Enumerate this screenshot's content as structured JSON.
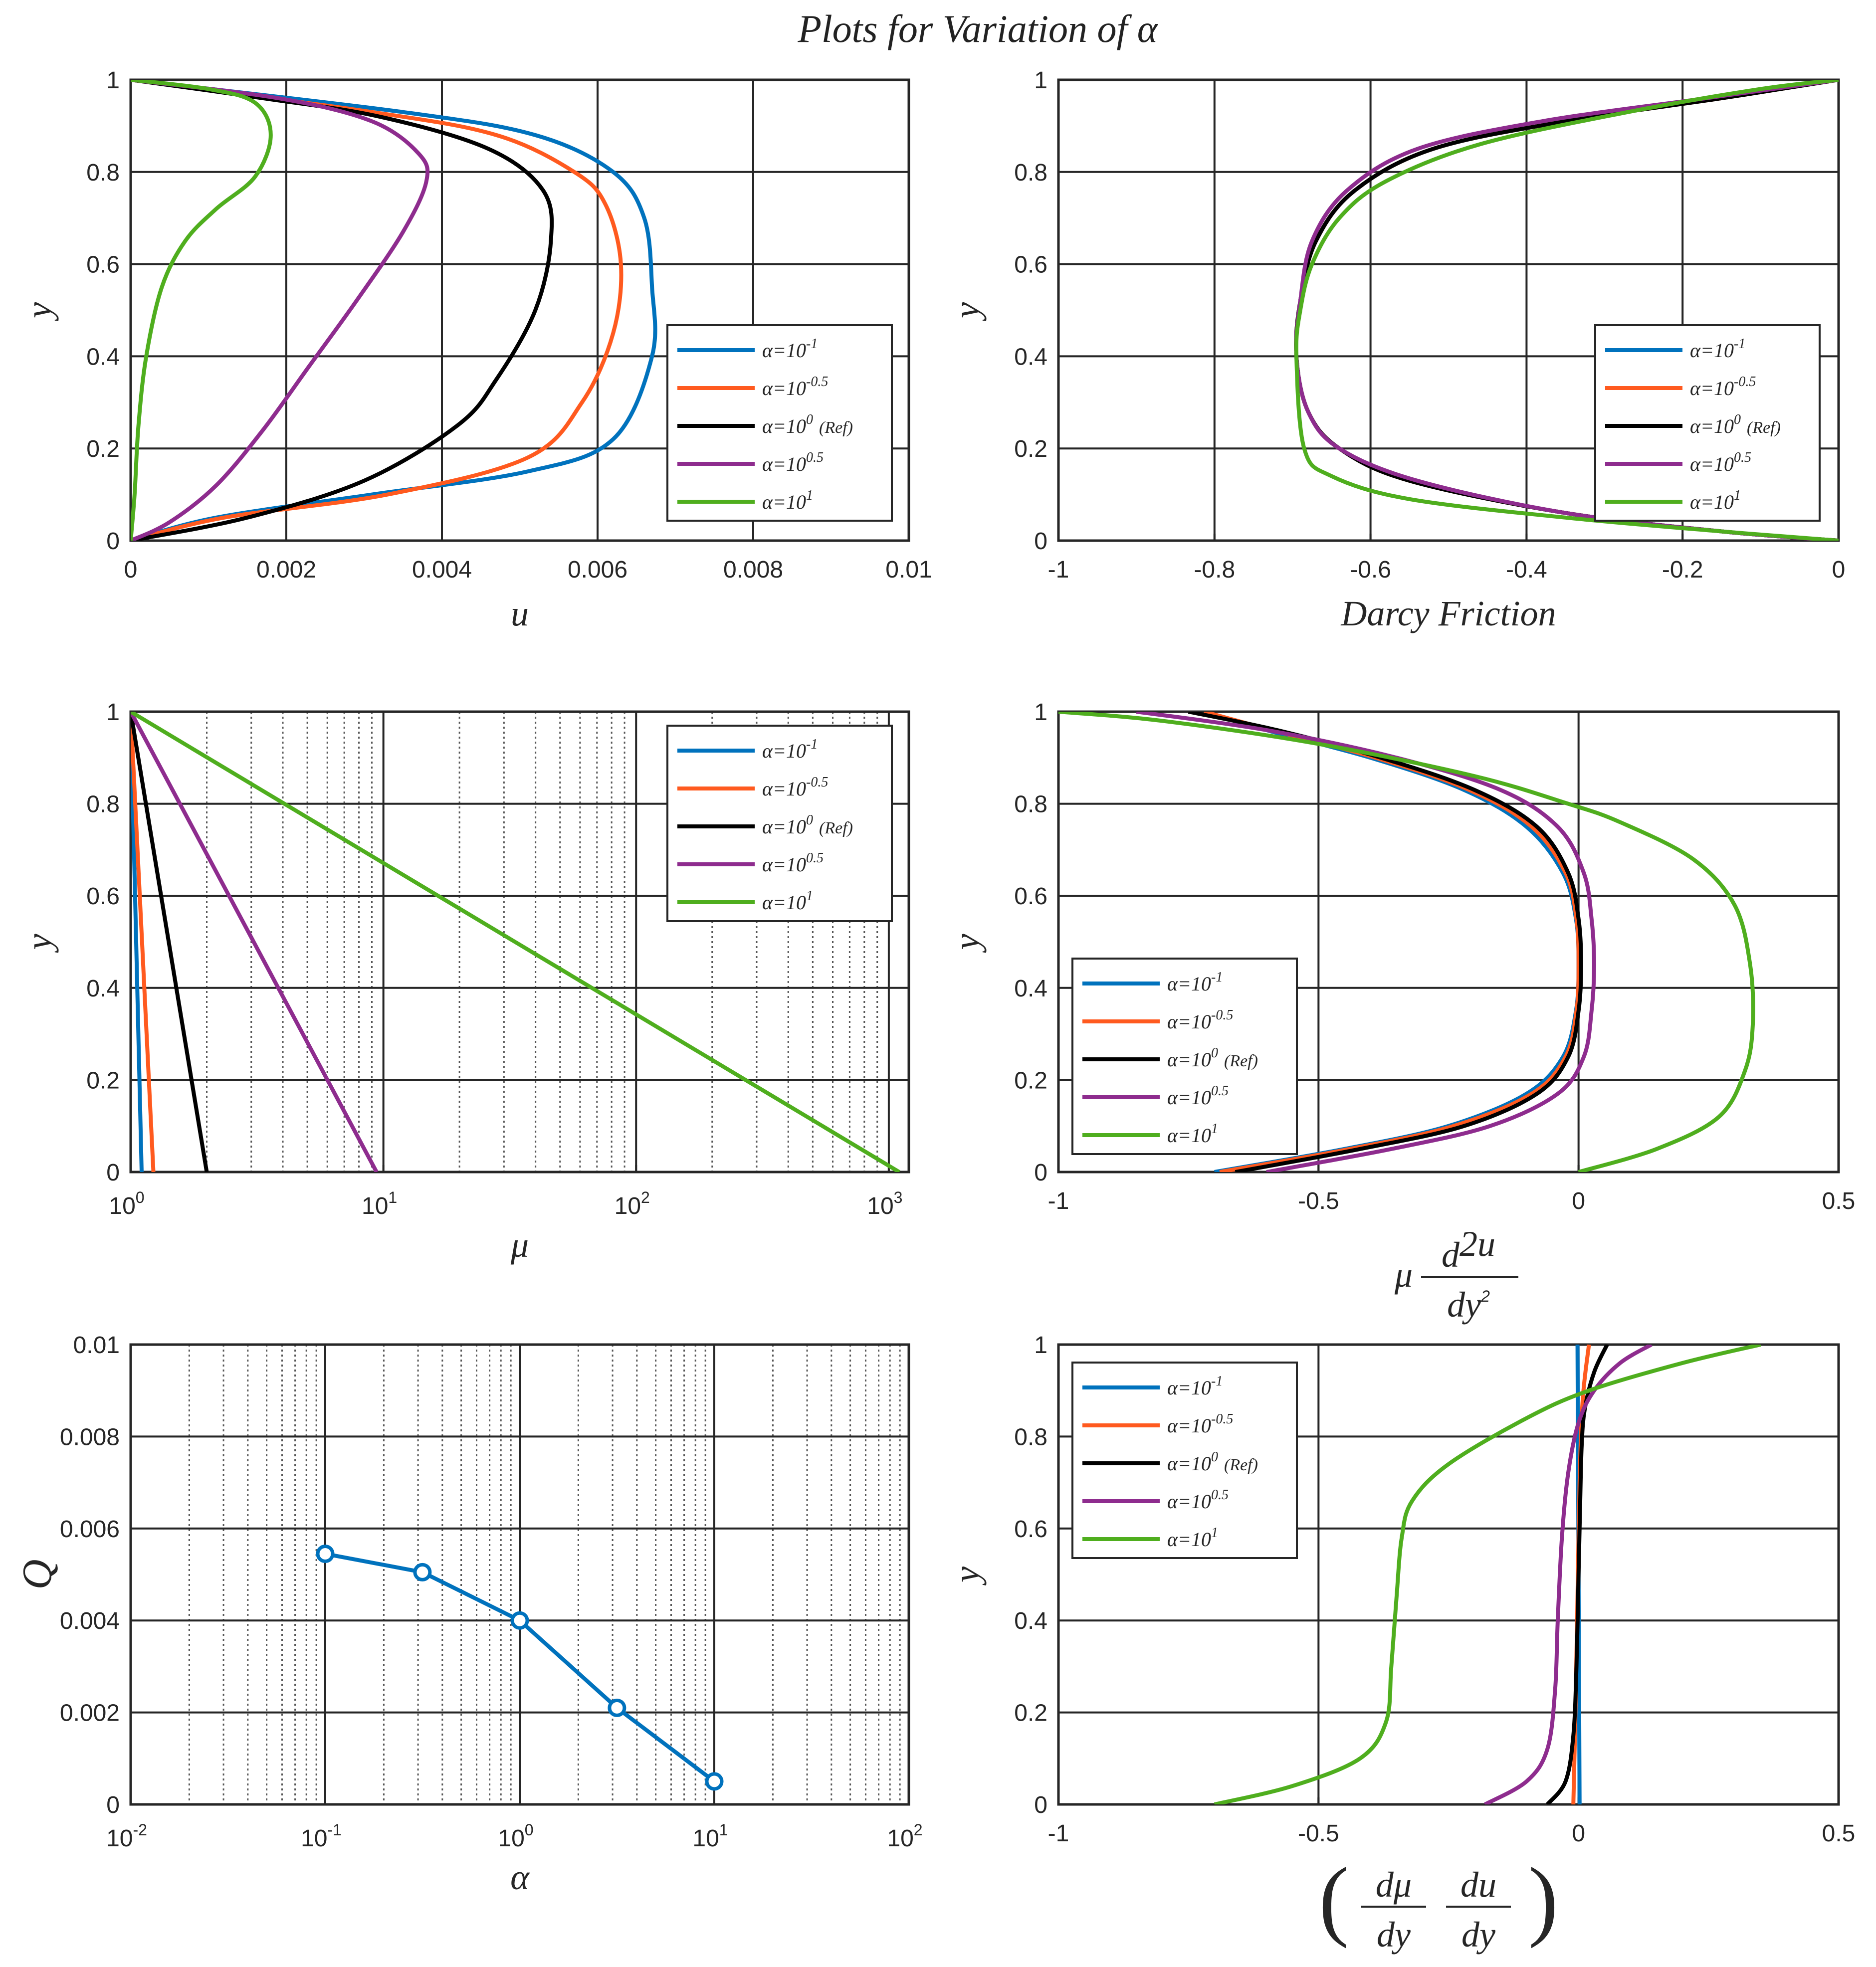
{
  "figure": {
    "title": "Plots for Variation of α"
  },
  "colors": {
    "alpha_1e-1": "#0072BD",
    "alpha_1e-0.5": "#ff5a1f",
    "alpha_1e0": "#000000",
    "alpha_1e0.5": "#8E2C8E",
    "alpha_1e1": "#4fae1e",
    "grid": "#262626",
    "minor_grid": "#555555"
  },
  "legend": {
    "entries": [
      {
        "base": "α=10",
        "exp": "-1",
        "suffix": ""
      },
      {
        "base": "α=10",
        "exp": "-0.5",
        "suffix": ""
      },
      {
        "base": "α=10",
        "exp": "0",
        "suffix": "(Ref)"
      },
      {
        "base": "α=10",
        "exp": "0.5",
        "suffix": ""
      },
      {
        "base": "α=10",
        "exp": "1",
        "suffix": ""
      }
    ]
  },
  "chart_data": [
    {
      "id": "u",
      "type": "line",
      "xlabel": "u",
      "ylabel": "y",
      "xlim": [
        0,
        0.01
      ],
      "ylim": [
        0,
        1
      ],
      "xticks": [
        "0",
        "0.002",
        "0.004",
        "0.006",
        "0.008",
        "0.01"
      ],
      "yticks": [
        "0",
        "0.2",
        "0.4",
        "0.6",
        "0.8",
        "1"
      ],
      "grid": true,
      "legend_position": "lower-right",
      "series": [
        {
          "name": "α=10^-1",
          "color": "#0072BD",
          "x": [
            0,
            0.0011,
            0.0031,
            0.0051,
            0.0062,
            0.0067,
            0.0067,
            0.0066,
            0.0062,
            0.0052,
            0.0035,
            0
          ],
          "y": [
            0,
            0.05,
            0.1,
            0.15,
            0.22,
            0.4,
            0.55,
            0.7,
            0.8,
            0.88,
            0.93,
            1
          ]
        },
        {
          "name": "α=10^-0.5",
          "color": "#ff5a1f",
          "x": [
            0,
            0.0012,
            0.0033,
            0.0051,
            0.0058,
            0.0062,
            0.0063,
            0.0061,
            0.0057,
            0.0047,
            0.0031,
            0
          ],
          "y": [
            0,
            0.05,
            0.1,
            0.18,
            0.3,
            0.45,
            0.6,
            0.73,
            0.8,
            0.88,
            0.93,
            1
          ]
        },
        {
          "name": "α=10^0 (Ref)",
          "color": "#000000",
          "x": [
            0,
            0.0015,
            0.003,
            0.0042,
            0.0047,
            0.0052,
            0.0054,
            0.0053,
            0.0046,
            0.0032,
            0.0017,
            0
          ],
          "y": [
            0,
            0.05,
            0.13,
            0.25,
            0.35,
            0.5,
            0.65,
            0.76,
            0.85,
            0.92,
            0.96,
            1
          ]
        },
        {
          "name": "α=10^0.5",
          "color": "#8E2C8E",
          "x": [
            0,
            0.0005,
            0.0011,
            0.0017,
            0.0023,
            0.0029,
            0.0035,
            0.0038,
            0.0037,
            0.0031,
            0.0019,
            0
          ],
          "y": [
            0,
            0.04,
            0.12,
            0.24,
            0.38,
            0.52,
            0.67,
            0.78,
            0.84,
            0.91,
            0.96,
            1
          ]
        },
        {
          "name": "α=10^1",
          "color": "#4fae1e",
          "x": [
            0,
            5e-05,
            0.0001,
            0.0002,
            0.0004,
            0.0007,
            0.0011,
            0.0016,
            0.0018,
            0.0016,
            0.001,
            0
          ],
          "y": [
            0,
            0.1,
            0.25,
            0.4,
            0.55,
            0.65,
            0.72,
            0.79,
            0.88,
            0.95,
            0.98,
            1
          ]
        }
      ]
    },
    {
      "id": "darcy",
      "type": "line",
      "xlabel": "Darcy Friction",
      "ylabel": "y",
      "xlim": [
        -1,
        0
      ],
      "ylim": [
        0,
        1
      ],
      "xticks": [
        "-1",
        "-0.8",
        "-0.6",
        "-0.4",
        "-0.2",
        "0"
      ],
      "yticks": [
        "0",
        "0.2",
        "0.4",
        "0.6",
        "0.8",
        "1"
      ],
      "grid": true,
      "legend_position": "lower-right",
      "series": [
        {
          "name": "α=10^-1",
          "color": "#0072BD",
          "x": [
            0,
            -0.15,
            -0.35,
            -0.55,
            -0.64,
            -0.68,
            -0.695,
            -0.69,
            -0.67,
            -0.62,
            -0.52,
            -0.35,
            -0.15,
            0
          ],
          "y": [
            0,
            0.02,
            0.06,
            0.13,
            0.2,
            0.28,
            0.4,
            0.52,
            0.65,
            0.76,
            0.85,
            0.91,
            0.96,
            1
          ]
        },
        {
          "name": "α=10^-0.5",
          "color": "#ff5a1f",
          "x": [
            0,
            -0.15,
            -0.35,
            -0.55,
            -0.64,
            -0.68,
            -0.695,
            -0.69,
            -0.67,
            -0.62,
            -0.52,
            -0.35,
            -0.15,
            0
          ],
          "y": [
            0,
            0.02,
            0.06,
            0.13,
            0.2,
            0.28,
            0.4,
            0.52,
            0.65,
            0.76,
            0.85,
            0.91,
            0.96,
            1
          ]
        },
        {
          "name": "α=10^0 (Ref)",
          "color": "#000000",
          "x": [
            0,
            -0.15,
            -0.35,
            -0.55,
            -0.64,
            -0.68,
            -0.695,
            -0.69,
            -0.67,
            -0.62,
            -0.52,
            -0.35,
            -0.15,
            0
          ],
          "y": [
            0,
            0.02,
            0.06,
            0.13,
            0.2,
            0.28,
            0.4,
            0.52,
            0.65,
            0.76,
            0.85,
            0.91,
            0.96,
            1
          ]
        },
        {
          "name": "α=10^0.5",
          "color": "#8E2C8E",
          "x": [
            0,
            -0.15,
            -0.35,
            -0.54,
            -0.64,
            -0.68,
            -0.695,
            -0.69,
            -0.675,
            -0.63,
            -0.54,
            -0.38,
            -0.17,
            0
          ],
          "y": [
            0,
            0.02,
            0.06,
            0.13,
            0.2,
            0.28,
            0.4,
            0.52,
            0.65,
            0.76,
            0.85,
            0.91,
            0.96,
            1
          ]
        },
        {
          "name": "α=10^1",
          "color": "#4fae1e",
          "x": [
            0,
            -0.15,
            -0.35,
            -0.55,
            -0.65,
            -0.685,
            -0.695,
            -0.69,
            -0.675,
            -0.64,
            -0.58,
            -0.46,
            -0.27,
            -0.1,
            0
          ],
          "y": [
            0,
            0.02,
            0.05,
            0.09,
            0.14,
            0.2,
            0.4,
            0.5,
            0.6,
            0.7,
            0.78,
            0.86,
            0.93,
            0.98,
            1
          ]
        }
      ]
    },
    {
      "id": "mu",
      "type": "line",
      "xlabel": "μ",
      "ylabel": "y",
      "xscale": "log",
      "xlim": [
        1,
        1200
      ],
      "ylim": [
        0,
        1
      ],
      "xticks": [
        {
          "base": "10",
          "exp": "0"
        },
        {
          "base": "10",
          "exp": "1"
        },
        {
          "base": "10",
          "exp": "2"
        },
        {
          "base": "10",
          "exp": "3"
        }
      ],
      "yticks": [
        "0",
        "0.2",
        "0.4",
        "0.6",
        "0.8",
        "1"
      ],
      "grid": true,
      "legend_position": "top-right",
      "series": [
        {
          "name": "α=10^-1",
          "color": "#0072BD",
          "x": [
            1.105,
            1
          ],
          "y": [
            0,
            1
          ]
        },
        {
          "name": "α=10^-0.5",
          "color": "#ff5a1f",
          "x": [
            1.23,
            1
          ],
          "y": [
            0,
            1
          ]
        },
        {
          "name": "α=10^0 (Ref)",
          "color": "#000000",
          "x": [
            2,
            1
          ],
          "y": [
            0,
            1
          ]
        },
        {
          "name": "α=10^0.5",
          "color": "#8E2C8E",
          "x": [
            9.4,
            1
          ],
          "y": [
            0,
            1
          ]
        },
        {
          "name": "α=10^1",
          "color": "#4fae1e",
          "x": [
            1100,
            1
          ],
          "y": [
            0,
            1
          ]
        }
      ]
    },
    {
      "id": "mu_d2u",
      "type": "line",
      "xlabel": "μ d²u/dy²",
      "xlabel_parts": {
        "prefix": "μ",
        "num": "d",
        "num_sup": "2",
        "num_tail": "u",
        "den": "dy",
        "den_sup": "2"
      },
      "ylabel": "y",
      "xlim": [
        -1,
        0.5
      ],
      "ylim": [
        0,
        1
      ],
      "xticks": [
        "-1",
        "-0.5",
        "0",
        "0.5"
      ],
      "yticks": [
        "0",
        "0.2",
        "0.4",
        "0.6",
        "0.8",
        "1"
      ],
      "grid": true,
      "legend_position": "lower-left",
      "series": [
        {
          "name": "α=10^-1",
          "color": "#0072BD",
          "x": [
            -0.7,
            -0.45,
            -0.25,
            -0.1,
            -0.03,
            -0.005,
            0,
            -0.005,
            -0.03,
            -0.1,
            -0.22,
            -0.4,
            -0.6,
            -0.72
          ],
          "y": [
            0,
            0.05,
            0.1,
            0.17,
            0.25,
            0.35,
            0.45,
            0.55,
            0.65,
            0.75,
            0.83,
            0.9,
            0.96,
            1
          ]
        },
        {
          "name": "α=10^-0.5",
          "color": "#ff5a1f",
          "x": [
            -0.69,
            -0.44,
            -0.24,
            -0.09,
            -0.025,
            -0.004,
            0,
            -0.004,
            -0.025,
            -0.09,
            -0.21,
            -0.39,
            -0.59,
            -0.72
          ],
          "y": [
            0,
            0.05,
            0.1,
            0.17,
            0.25,
            0.35,
            0.45,
            0.55,
            0.65,
            0.75,
            0.83,
            0.9,
            0.96,
            1
          ]
        },
        {
          "name": "α=10^0 (Ref)",
          "color": "#000000",
          "x": [
            -0.66,
            -0.42,
            -0.22,
            -0.08,
            -0.02,
            0.0,
            0.005,
            0.0,
            -0.02,
            -0.08,
            -0.2,
            -0.38,
            -0.58,
            -0.75
          ],
          "y": [
            0,
            0.05,
            0.1,
            0.17,
            0.25,
            0.35,
            0.45,
            0.55,
            0.65,
            0.75,
            0.83,
            0.9,
            0.96,
            1
          ]
        },
        {
          "name": "α=10^0.5",
          "color": "#8E2C8E",
          "x": [
            -0.6,
            -0.36,
            -0.17,
            -0.04,
            0.01,
            0.025,
            0.03,
            0.025,
            0.01,
            -0.04,
            -0.15,
            -0.35,
            -0.6,
            -0.85
          ],
          "y": [
            0,
            0.05,
            0.1,
            0.17,
            0.25,
            0.35,
            0.45,
            0.55,
            0.65,
            0.75,
            0.83,
            0.9,
            0.96,
            1
          ]
        },
        {
          "name": "α=10^1",
          "color": "#4fae1e",
          "x": [
            0,
            0.15,
            0.27,
            0.32,
            0.335,
            0.33,
            0.3,
            0.22,
            0.08,
            -0.02,
            -0.2,
            -0.5,
            -0.8,
            -1.0
          ],
          "y": [
            0,
            0.05,
            0.12,
            0.22,
            0.32,
            0.45,
            0.58,
            0.68,
            0.76,
            0.8,
            0.86,
            0.93,
            0.98,
            1
          ]
        }
      ]
    },
    {
      "id": "Q",
      "type": "line",
      "xlabel": "α",
      "ylabel": "Q",
      "xscale": "log",
      "xlim": [
        0.01,
        100
      ],
      "ylim": [
        0,
        0.01
      ],
      "xticks": [
        {
          "base": "10",
          "exp": "-2"
        },
        {
          "base": "10",
          "exp": "-1"
        },
        {
          "base": "10",
          "exp": "0"
        },
        {
          "base": "10",
          "exp": "1"
        },
        {
          "base": "10",
          "exp": "2"
        }
      ],
      "yticks": [
        "0",
        "0.002",
        "0.004",
        "0.006",
        "0.008",
        "0.01"
      ],
      "grid": true,
      "series": [
        {
          "name": "",
          "color": "#0072BD",
          "markers": true,
          "x": [
            0.1,
            0.316,
            1,
            3.16,
            10
          ],
          "y": [
            0.00545,
            0.00505,
            0.004,
            0.0021,
            0.0005
          ]
        }
      ]
    },
    {
      "id": "dmu_du",
      "type": "line",
      "xlabel": "(dμ/dy · du/dy)",
      "xlabel_parts": {
        "num1": "dμ",
        "den1": "dy",
        "num2": "du",
        "den2": "dy"
      },
      "ylabel": "y",
      "xlim": [
        -1,
        0.5
      ],
      "ylim": [
        0,
        1
      ],
      "xticks": [
        "-1",
        "-0.5",
        "0",
        "0.5"
      ],
      "yticks": [
        "0",
        "0.2",
        "0.4",
        "0.6",
        "0.8",
        "1"
      ],
      "grid": true,
      "legend_position": "top-left",
      "series": [
        {
          "name": "α=10^-1",
          "color": "#0072BD",
          "x": [
            0.002,
            0.001,
            0,
            -0.001,
            -0.002
          ],
          "y": [
            0,
            0.25,
            0.5,
            0.75,
            1
          ]
        },
        {
          "name": "α=10^-0.5",
          "color": "#ff5a1f",
          "x": [
            -0.01,
            -0.006,
            -0.002,
            0.002,
            0.008,
            0.02
          ],
          "y": [
            0,
            0.2,
            0.45,
            0.7,
            0.88,
            1
          ]
        },
        {
          "name": "α=10^0 (Ref)",
          "color": "#000000",
          "x": [
            -0.06,
            -0.025,
            -0.01,
            -0.004,
            0,
            0.003,
            0.006,
            0.012,
            0.03,
            0.055
          ],
          "y": [
            0,
            0.05,
            0.15,
            0.3,
            0.5,
            0.65,
            0.78,
            0.86,
            0.94,
            1
          ]
        },
        {
          "name": "α=10^0.5",
          "color": "#8E2C8E",
          "x": [
            -0.18,
            -0.1,
            -0.06,
            -0.045,
            -0.04,
            -0.032,
            -0.02,
            0,
            0.03,
            0.08,
            0.14
          ],
          "y": [
            0,
            0.05,
            0.12,
            0.25,
            0.4,
            0.58,
            0.72,
            0.83,
            0.9,
            0.96,
            1
          ]
        },
        {
          "name": "α=10^1",
          "color": "#4fae1e",
          "x": [
            -0.7,
            -0.55,
            -0.42,
            -0.37,
            -0.36,
            -0.35,
            -0.34,
            -0.32,
            -0.25,
            -0.1,
            0.02,
            0.2,
            0.35
          ],
          "y": [
            0,
            0.04,
            0.1,
            0.18,
            0.3,
            0.45,
            0.58,
            0.66,
            0.74,
            0.84,
            0.9,
            0.96,
            1
          ]
        }
      ]
    }
  ]
}
